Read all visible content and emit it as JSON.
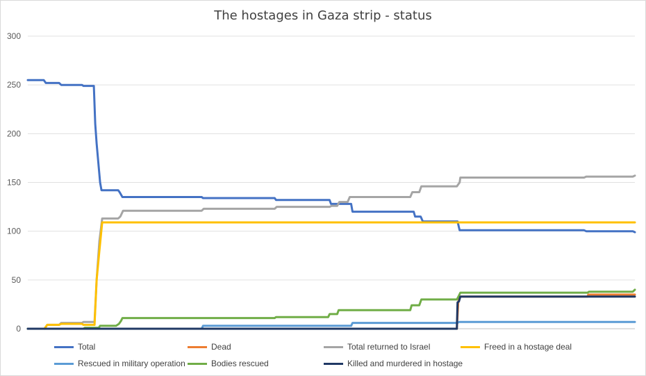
{
  "chart_data": {
    "type": "line",
    "title": "The hostages in Gaza strip - status",
    "xlabel": "",
    "ylabel": "",
    "ylim": [
      0,
      300
    ],
    "yticks": [
      "0",
      "50",
      "100",
      "150",
      "200",
      "250",
      "300"
    ],
    "grid": true,
    "legend_position": "bottom",
    "series": [
      {
        "name": "Total",
        "color": "#4472c4",
        "points": [
          [
            0,
            255
          ],
          [
            23,
            255
          ],
          [
            26,
            252
          ],
          [
            45,
            252
          ],
          [
            48,
            250
          ],
          [
            78,
            250
          ],
          [
            80,
            249
          ],
          [
            95,
            249
          ],
          [
            97,
            210
          ],
          [
            99,
            190
          ],
          [
            104,
            150
          ],
          [
            106,
            142
          ],
          [
            130,
            142
          ],
          [
            132,
            140
          ],
          [
            136,
            135
          ],
          [
            250,
            135
          ],
          [
            252,
            134
          ],
          [
            355,
            134
          ],
          [
            357,
            132
          ],
          [
            434,
            132
          ],
          [
            436,
            128
          ],
          [
            445,
            128
          ],
          [
            465,
            128
          ],
          [
            467,
            120
          ],
          [
            555,
            120
          ],
          [
            557,
            115
          ],
          [
            565,
            115
          ],
          [
            568,
            110
          ],
          [
            618,
            110
          ],
          [
            621,
            101
          ],
          [
            800,
            101
          ],
          [
            803,
            100
          ],
          [
            870,
            100
          ],
          [
            873,
            99
          ]
        ]
      },
      {
        "name": "Dead",
        "color": "#ed7d31",
        "points": [
          [
            0,
            0
          ],
          [
            617,
            0
          ],
          [
            619,
            27
          ],
          [
            621,
            33
          ],
          [
            805,
            33
          ],
          [
            806,
            35
          ],
          [
            873,
            35
          ]
        ]
      },
      {
        "name": "Total returned to Israel",
        "color": "#a5a5a5",
        "points": [
          [
            24,
            0
          ],
          [
            28,
            4
          ],
          [
            45,
            4
          ],
          [
            48,
            6
          ],
          [
            78,
            6
          ],
          [
            80,
            7
          ],
          [
            96,
            7
          ],
          [
            99,
            50
          ],
          [
            103,
            90
          ],
          [
            107,
            113
          ],
          [
            130,
            113
          ],
          [
            133,
            115
          ],
          [
            137,
            121
          ],
          [
            250,
            121
          ],
          [
            253,
            123
          ],
          [
            355,
            123
          ],
          [
            358,
            125
          ],
          [
            434,
            125
          ],
          [
            437,
            126
          ],
          [
            445,
            126
          ],
          [
            448,
            130
          ],
          [
            460,
            130
          ],
          [
            463,
            135
          ],
          [
            550,
            135
          ],
          [
            553,
            140
          ],
          [
            563,
            140
          ],
          [
            566,
            146
          ],
          [
            617,
            146
          ],
          [
            621,
            150
          ],
          [
            622,
            155
          ],
          [
            800,
            155
          ],
          [
            803,
            156
          ],
          [
            870,
            156
          ],
          [
            873,
            157
          ]
        ]
      },
      {
        "name": "Freed in a hostage deal",
        "color": "#ffc000",
        "points": [
          [
            24,
            0
          ],
          [
            28,
            4
          ],
          [
            45,
            4
          ],
          [
            48,
            5
          ],
          [
            78,
            5
          ],
          [
            80,
            4
          ],
          [
            96,
            4
          ],
          [
            99,
            50
          ],
          [
            103,
            80
          ],
          [
            107,
            109
          ],
          [
            873,
            109
          ]
        ]
      },
      {
        "name": "Rescued in military operation",
        "color": "#5b9bd5",
        "points": [
          [
            0,
            0
          ],
          [
            250,
            0
          ],
          [
            252,
            3
          ],
          [
            465,
            3
          ],
          [
            467,
            6
          ],
          [
            618,
            6
          ],
          [
            620,
            7
          ],
          [
            873,
            7
          ]
        ]
      },
      {
        "name": "Bodies rescued",
        "color": "#70ad47",
        "points": [
          [
            0,
            0
          ],
          [
            80,
            0
          ],
          [
            82,
            1
          ],
          [
            102,
            1
          ],
          [
            104,
            3
          ],
          [
            127,
            3
          ],
          [
            131,
            5
          ],
          [
            134,
            8
          ],
          [
            136,
            11
          ],
          [
            355,
            11
          ],
          [
            357,
            12
          ],
          [
            432,
            12
          ],
          [
            434,
            15
          ],
          [
            445,
            15
          ],
          [
            447,
            19
          ],
          [
            550,
            19
          ],
          [
            552,
            24
          ],
          [
            563,
            24
          ],
          [
            566,
            30
          ],
          [
            617,
            30
          ],
          [
            620,
            34
          ],
          [
            622,
            37
          ],
          [
            805,
            37
          ],
          [
            807,
            38
          ],
          [
            870,
            38
          ],
          [
            873,
            40
          ]
        ]
      },
      {
        "name": "Killed and murdered in hostage",
        "color": "#203864",
        "points": [
          [
            0,
            0
          ],
          [
            617,
            0
          ],
          [
            618,
            27
          ],
          [
            620,
            28
          ],
          [
            622,
            33
          ],
          [
            873,
            33
          ]
        ]
      }
    ]
  }
}
